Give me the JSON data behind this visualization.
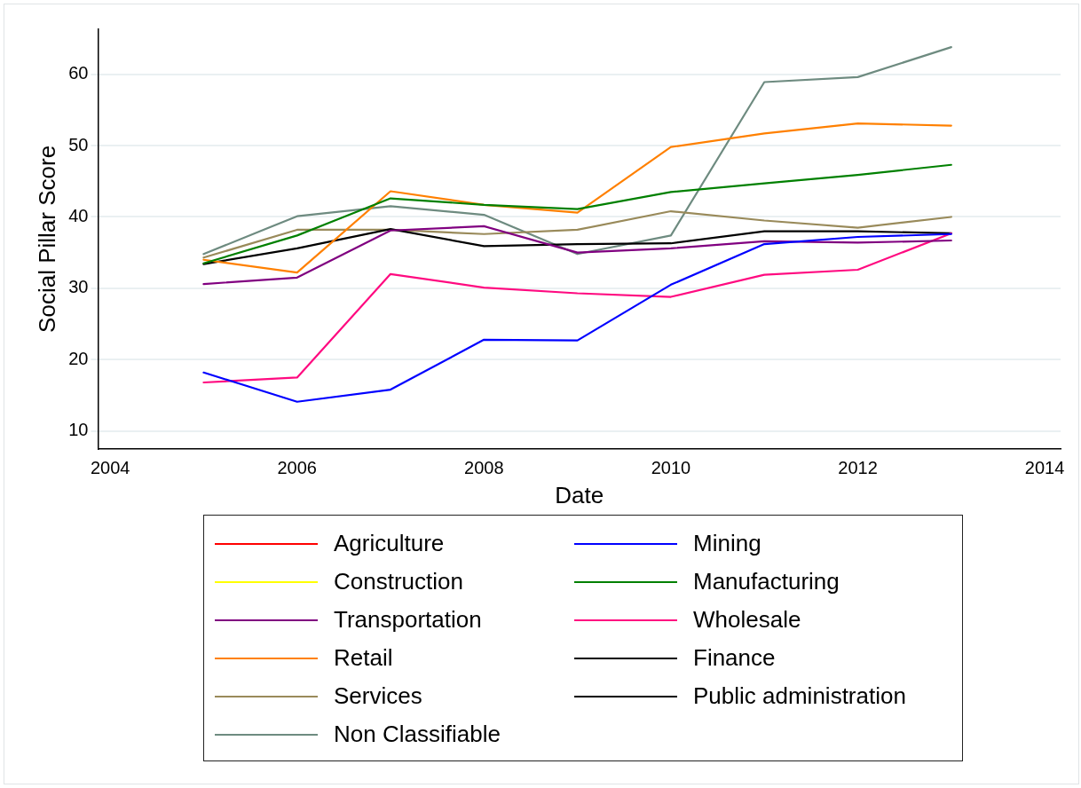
{
  "chart_data": {
    "type": "line",
    "xlabel": "Date",
    "ylabel": "Social Pillar Score",
    "x": [
      2005,
      2006,
      2007,
      2008,
      2009,
      2010,
      2011,
      2012,
      2013
    ],
    "xlim": [
      2003.87,
      2014.17
    ],
    "xticks": [
      2004,
      2006,
      2008,
      2010,
      2012,
      2014
    ],
    "ylim": [
      7.5,
      66.3
    ],
    "yticks": [
      10,
      20,
      30,
      40,
      50,
      60
    ],
    "grid": "y",
    "legend": "bottom",
    "marker": "none",
    "line_style": "solid",
    "series": [
      {
        "name": "Agriculture",
        "color": "#ff0000",
        "values": [
          null,
          null,
          null,
          null,
          null,
          null,
          null,
          null,
          null
        ]
      },
      {
        "name": "Mining",
        "color": "#0000ff",
        "values": [
          18.2,
          14.1,
          15.8,
          22.8,
          22.7,
          30.5,
          36.2,
          37.2,
          37.6
        ]
      },
      {
        "name": "Construction",
        "color": "#ffff00",
        "values": [
          null,
          null,
          null,
          null,
          null,
          null,
          null,
          null,
          null
        ]
      },
      {
        "name": "Manufacturing",
        "color": "#008000",
        "values": [
          33.5,
          37.4,
          42.6,
          41.7,
          41.1,
          43.5,
          44.7,
          45.9,
          47.3
        ]
      },
      {
        "name": "Transportation",
        "color": "#800080",
        "values": [
          30.6,
          31.5,
          38.1,
          38.7,
          35.0,
          35.6,
          36.6,
          36.4,
          36.7
        ]
      },
      {
        "name": "Wholesale",
        "color": "#ff0a80",
        "values": [
          16.8,
          17.5,
          32.0,
          30.1,
          29.3,
          28.8,
          31.9,
          32.6,
          37.7
        ]
      },
      {
        "name": "Retail",
        "color": "#ff8000",
        "values": [
          34.0,
          32.2,
          43.6,
          41.7,
          40.6,
          49.8,
          51.7,
          53.1,
          52.8
        ]
      },
      {
        "name": "Finance",
        "color": "#000000",
        "values": [
          33.4,
          35.6,
          38.3,
          35.9,
          36.2,
          36.3,
          38.0,
          38.0,
          37.7
        ]
      },
      {
        "name": "Services",
        "color": "#998a5a",
        "values": [
          34.3,
          38.2,
          38.2,
          37.6,
          38.2,
          40.8,
          39.5,
          38.5,
          40.0
        ]
      },
      {
        "name": "Public administration",
        "color": "#000000",
        "values": [
          null,
          null,
          null,
          null,
          null,
          null,
          null,
          null,
          null
        ]
      },
      {
        "name": "Non Classifiable",
        "color": "#6e8b80",
        "values": [
          34.8,
          40.1,
          41.5,
          40.3,
          34.8,
          37.4,
          58.9,
          59.6,
          63.8
        ]
      }
    ]
  }
}
